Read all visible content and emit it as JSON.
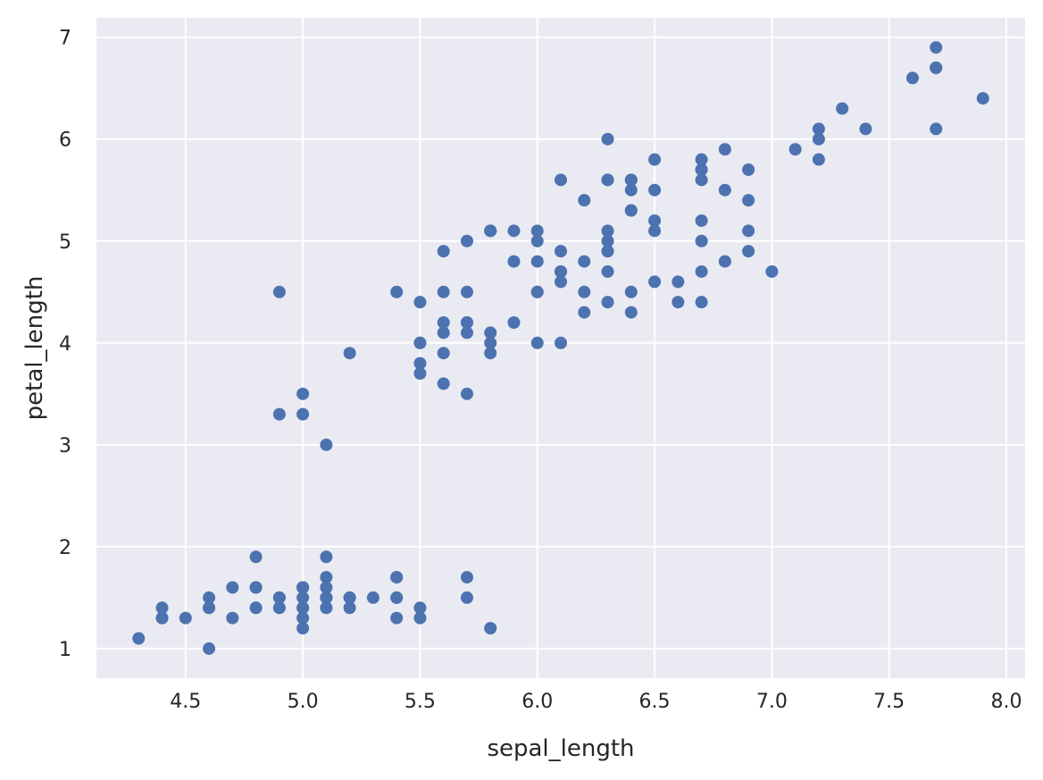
{
  "chart_data": {
    "type": "scatter",
    "title": "",
    "xlabel": "sepal_length",
    "ylabel": "petal_length",
    "xlim": [
      4.12,
      8.08
    ],
    "ylim": [
      0.71,
      7.19
    ],
    "xticks": [
      4.5,
      5.0,
      5.5,
      6.0,
      6.5,
      7.0,
      7.5,
      8.0
    ],
    "xtick_labels": [
      "4.5",
      "5.0",
      "5.5",
      "6.0",
      "6.5",
      "7.0",
      "7.5",
      "8.0"
    ],
    "yticks": [
      1,
      2,
      3,
      4,
      5,
      6,
      7
    ],
    "ytick_labels": [
      "1",
      "2",
      "3",
      "4",
      "5",
      "6",
      "7"
    ],
    "grid": true,
    "colors": {
      "background": "#eaeaf2",
      "grid": "#ffffff",
      "marker": "#4c72b0",
      "text": "#262626"
    },
    "points": [
      {
        "x": 5.1,
        "y": 1.4
      },
      {
        "x": 4.9,
        "y": 1.4
      },
      {
        "x": 4.7,
        "y": 1.3
      },
      {
        "x": 4.6,
        "y": 1.5
      },
      {
        "x": 5.0,
        "y": 1.4
      },
      {
        "x": 5.4,
        "y": 1.7
      },
      {
        "x": 4.6,
        "y": 1.4
      },
      {
        "x": 5.0,
        "y": 1.5
      },
      {
        "x": 4.4,
        "y": 1.4
      },
      {
        "x": 4.9,
        "y": 1.5
      },
      {
        "x": 5.4,
        "y": 1.5
      },
      {
        "x": 4.8,
        "y": 1.6
      },
      {
        "x": 4.8,
        "y": 1.4
      },
      {
        "x": 4.3,
        "y": 1.1
      },
      {
        "x": 5.8,
        "y": 1.2
      },
      {
        "x": 5.7,
        "y": 1.5
      },
      {
        "x": 5.4,
        "y": 1.3
      },
      {
        "x": 5.1,
        "y": 1.4
      },
      {
        "x": 5.7,
        "y": 1.7
      },
      {
        "x": 5.1,
        "y": 1.5
      },
      {
        "x": 5.4,
        "y": 1.7
      },
      {
        "x": 5.1,
        "y": 1.5
      },
      {
        "x": 4.6,
        "y": 1.0
      },
      {
        "x": 5.1,
        "y": 1.7
      },
      {
        "x": 4.8,
        "y": 1.9
      },
      {
        "x": 5.0,
        "y": 1.6
      },
      {
        "x": 5.0,
        "y": 1.6
      },
      {
        "x": 5.2,
        "y": 1.5
      },
      {
        "x": 5.2,
        "y": 1.4
      },
      {
        "x": 4.7,
        "y": 1.6
      },
      {
        "x": 4.8,
        "y": 1.6
      },
      {
        "x": 5.4,
        "y": 1.5
      },
      {
        "x": 5.2,
        "y": 1.5
      },
      {
        "x": 5.5,
        "y": 1.4
      },
      {
        "x": 4.9,
        "y": 1.5
      },
      {
        "x": 5.0,
        "y": 1.2
      },
      {
        "x": 5.5,
        "y": 1.3
      },
      {
        "x": 4.9,
        "y": 1.4
      },
      {
        "x": 4.4,
        "y": 1.3
      },
      {
        "x": 5.1,
        "y": 1.5
      },
      {
        "x": 5.0,
        "y": 1.3
      },
      {
        "x": 4.5,
        "y": 1.3
      },
      {
        "x": 4.4,
        "y": 1.3
      },
      {
        "x": 5.0,
        "y": 1.6
      },
      {
        "x": 5.1,
        "y": 1.9
      },
      {
        "x": 4.8,
        "y": 1.4
      },
      {
        "x": 5.1,
        "y": 1.6
      },
      {
        "x": 4.6,
        "y": 1.4
      },
      {
        "x": 5.3,
        "y": 1.5
      },
      {
        "x": 5.0,
        "y": 1.4
      },
      {
        "x": 7.0,
        "y": 4.7
      },
      {
        "x": 6.4,
        "y": 4.5
      },
      {
        "x": 6.9,
        "y": 4.9
      },
      {
        "x": 5.5,
        "y": 4.0
      },
      {
        "x": 6.5,
        "y": 4.6
      },
      {
        "x": 5.7,
        "y": 4.5
      },
      {
        "x": 6.3,
        "y": 4.7
      },
      {
        "x": 4.9,
        "y": 3.3
      },
      {
        "x": 6.6,
        "y": 4.6
      },
      {
        "x": 5.2,
        "y": 3.9
      },
      {
        "x": 5.0,
        "y": 3.5
      },
      {
        "x": 5.9,
        "y": 4.2
      },
      {
        "x": 6.0,
        "y": 4.0
      },
      {
        "x": 6.1,
        "y": 4.7
      },
      {
        "x": 5.6,
        "y": 3.6
      },
      {
        "x": 6.7,
        "y": 4.4
      },
      {
        "x": 5.6,
        "y": 4.5
      },
      {
        "x": 5.8,
        "y": 4.1
      },
      {
        "x": 6.2,
        "y": 4.5
      },
      {
        "x": 5.6,
        "y": 3.9
      },
      {
        "x": 5.9,
        "y": 4.8
      },
      {
        "x": 6.1,
        "y": 4.0
      },
      {
        "x": 6.3,
        "y": 4.9
      },
      {
        "x": 6.1,
        "y": 4.7
      },
      {
        "x": 6.4,
        "y": 4.3
      },
      {
        "x": 6.6,
        "y": 4.4
      },
      {
        "x": 6.8,
        "y": 4.8
      },
      {
        "x": 6.7,
        "y": 5.0
      },
      {
        "x": 6.0,
        "y": 4.5
      },
      {
        "x": 5.7,
        "y": 3.5
      },
      {
        "x": 5.5,
        "y": 3.8
      },
      {
        "x": 5.5,
        "y": 3.7
      },
      {
        "x": 5.8,
        "y": 3.9
      },
      {
        "x": 6.0,
        "y": 5.1
      },
      {
        "x": 5.4,
        "y": 4.5
      },
      {
        "x": 6.0,
        "y": 4.5
      },
      {
        "x": 6.7,
        "y": 4.7
      },
      {
        "x": 6.3,
        "y": 4.4
      },
      {
        "x": 5.6,
        "y": 4.1
      },
      {
        "x": 5.5,
        "y": 4.0
      },
      {
        "x": 5.5,
        "y": 4.4
      },
      {
        "x": 6.1,
        "y": 4.6
      },
      {
        "x": 5.8,
        "y": 4.0
      },
      {
        "x": 5.0,
        "y": 3.3
      },
      {
        "x": 5.6,
        "y": 4.2
      },
      {
        "x": 5.7,
        "y": 4.2
      },
      {
        "x": 5.7,
        "y": 4.2
      },
      {
        "x": 6.2,
        "y": 4.3
      },
      {
        "x": 5.1,
        "y": 3.0
      },
      {
        "x": 5.7,
        "y": 4.1
      },
      {
        "x": 6.3,
        "y": 6.0
      },
      {
        "x": 5.8,
        "y": 5.1
      },
      {
        "x": 7.1,
        "y": 5.9
      },
      {
        "x": 6.3,
        "y": 5.6
      },
      {
        "x": 6.5,
        "y": 5.8
      },
      {
        "x": 7.6,
        "y": 6.6
      },
      {
        "x": 4.9,
        "y": 4.5
      },
      {
        "x": 7.3,
        "y": 6.3
      },
      {
        "x": 6.7,
        "y": 5.8
      },
      {
        "x": 7.2,
        "y": 6.1
      },
      {
        "x": 6.5,
        "y": 5.1
      },
      {
        "x": 6.4,
        "y": 5.3
      },
      {
        "x": 6.8,
        "y": 5.5
      },
      {
        "x": 5.7,
        "y": 5.0
      },
      {
        "x": 5.8,
        "y": 5.1
      },
      {
        "x": 6.4,
        "y": 5.3
      },
      {
        "x": 6.5,
        "y": 5.5
      },
      {
        "x": 7.7,
        "y": 6.7
      },
      {
        "x": 7.7,
        "y": 6.9
      },
      {
        "x": 6.0,
        "y": 5.0
      },
      {
        "x": 6.9,
        "y": 5.7
      },
      {
        "x": 5.6,
        "y": 4.9
      },
      {
        "x": 7.7,
        "y": 6.7
      },
      {
        "x": 6.3,
        "y": 4.9
      },
      {
        "x": 6.7,
        "y": 5.7
      },
      {
        "x": 7.2,
        "y": 6.0
      },
      {
        "x": 6.2,
        "y": 4.8
      },
      {
        "x": 6.1,
        "y": 4.9
      },
      {
        "x": 6.4,
        "y": 5.6
      },
      {
        "x": 7.2,
        "y": 5.8
      },
      {
        "x": 7.4,
        "y": 6.1
      },
      {
        "x": 7.9,
        "y": 6.4
      },
      {
        "x": 6.4,
        "y": 5.6
      },
      {
        "x": 6.3,
        "y": 5.1
      },
      {
        "x": 6.1,
        "y": 5.6
      },
      {
        "x": 7.7,
        "y": 6.1
      },
      {
        "x": 6.3,
        "y": 5.6
      },
      {
        "x": 6.4,
        "y": 5.5
      },
      {
        "x": 6.0,
        "y": 4.8
      },
      {
        "x": 6.9,
        "y": 5.4
      },
      {
        "x": 6.7,
        "y": 5.6
      },
      {
        "x": 6.9,
        "y": 5.1
      },
      {
        "x": 5.8,
        "y": 5.1
      },
      {
        "x": 6.8,
        "y": 5.9
      },
      {
        "x": 6.7,
        "y": 5.7
      },
      {
        "x": 6.7,
        "y": 5.2
      },
      {
        "x": 6.3,
        "y": 5.0
      },
      {
        "x": 6.5,
        "y": 5.2
      },
      {
        "x": 6.2,
        "y": 5.4
      },
      {
        "x": 5.9,
        "y": 5.1
      }
    ]
  }
}
